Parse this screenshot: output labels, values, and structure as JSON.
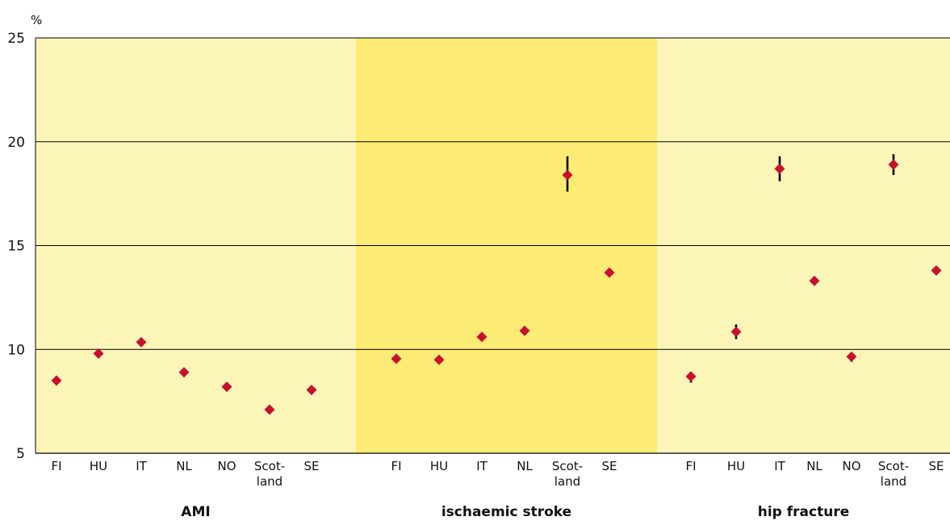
{
  "chart_data": {
    "type": "scatter",
    "ylabel": "%",
    "ylim": [
      5,
      25
    ],
    "yticks": [
      5,
      10,
      15,
      20,
      25
    ],
    "grid": true,
    "colors": {
      "panel_light": "#FCF5B8",
      "panel_dark": "#FCEB75",
      "marker": "#C8102E",
      "error_bar": "#000000",
      "gridline": "#000000"
    },
    "panels": [
      {
        "label": "AMI",
        "categories": [
          "FI",
          "HU",
          "IT",
          "NL",
          "NO",
          [
            "Scot-",
            "land"
          ],
          "SE"
        ],
        "values": [
          8.5,
          9.8,
          10.35,
          8.9,
          8.2,
          7.1,
          8.05
        ],
        "errors": [
          null,
          null,
          null,
          null,
          null,
          null,
          null
        ]
      },
      {
        "label": "ischaemic stroke",
        "categories": [
          "FI",
          "HU",
          "IT",
          "NL",
          [
            "Scot-",
            "land"
          ],
          "SE"
        ],
        "values": [
          9.55,
          9.5,
          10.6,
          10.9,
          18.4,
          13.7
        ],
        "errors": [
          null,
          null,
          null,
          null,
          [
            17.6,
            19.3
          ],
          null
        ]
      },
      {
        "label": "hip fracture",
        "categories": [
          "FI",
          "HU",
          "IT",
          "NL",
          "NO",
          [
            "Scot-",
            "land"
          ],
          "SE"
        ],
        "values": [
          8.7,
          10.85,
          18.7,
          13.3,
          9.65,
          18.9,
          13.8
        ],
        "errors": [
          [
            8.4,
            8.9
          ],
          [
            10.5,
            11.2
          ],
          [
            18.1,
            19.3
          ],
          null,
          [
            9.4,
            9.8
          ],
          [
            18.4,
            19.4
          ],
          null
        ]
      }
    ]
  }
}
